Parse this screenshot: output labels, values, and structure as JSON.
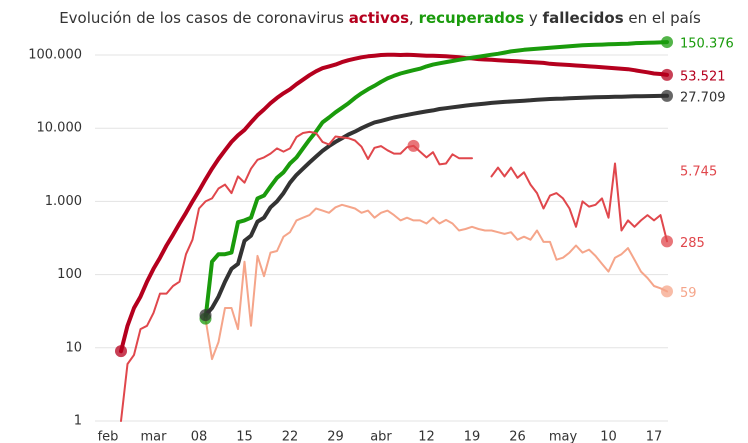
{
  "chart_data": {
    "type": "line",
    "title_parts": [
      "Evolución de los casos de coronavirus ",
      "activos",
      ", ",
      "recuperados",
      " y ",
      "fallecidos",
      " en el país"
    ],
    "categories": [
      "feb",
      null,
      null,
      null,
      null,
      null,
      null,
      "mar",
      null,
      null,
      null,
      null,
      null,
      null,
      "08",
      null,
      null,
      null,
      null,
      null,
      null,
      "15",
      null,
      null,
      null,
      null,
      null,
      null,
      "22",
      null,
      null,
      null,
      null,
      null,
      null,
      "29",
      null,
      null,
      null,
      null,
      null,
      null,
      "abr",
      null,
      null,
      null,
      null,
      null,
      null,
      "12",
      null,
      null,
      null,
      null,
      null,
      null,
      "19",
      null,
      null,
      null,
      null,
      null,
      null,
      "26",
      null,
      null,
      null,
      null,
      null,
      null,
      "may",
      null,
      null,
      null,
      null,
      null,
      null,
      "10",
      null,
      null,
      null,
      null,
      null,
      null,
      "17",
      null,
      null
    ],
    "log_scale": true,
    "grid": true,
    "ylim": [
      1,
      200000
    ],
    "yticks": [
      {
        "value": 100000,
        "label": "100.000"
      },
      {
        "value": 10000,
        "label": "10.000"
      },
      {
        "value": 1000,
        "label": "1.000"
      },
      100,
      10,
      1
    ],
    "series": [
      {
        "color": "#b5001e",
        "line_width": 4,
        "values": [
          null,
          null,
          9,
          20,
          35,
          50,
          80,
          120,
          170,
          250,
          350,
          500,
          700,
          1000,
          1400,
          2000,
          2800,
          3800,
          5000,
          6500,
          8000,
          9500,
          12000,
          15000,
          18000,
          22000,
          26000,
          30000,
          34000,
          40000,
          46000,
          53000,
          60000,
          66000,
          70000,
          74000,
          80000,
          85000,
          89000,
          93000,
          96000,
          98000,
          100000,
          101000,
          101000,
          100000,
          101000,
          100000,
          99000,
          98000,
          98000,
          97000,
          96000,
          95000,
          93000,
          91000,
          90000,
          88000,
          87000,
          86000,
          85000,
          84000,
          83000,
          82000,
          81000,
          80000,
          79000,
          78000,
          76000,
          75000,
          74000,
          73000,
          72000,
          71000,
          70000,
          69000,
          68000,
          67000,
          66000,
          65000,
          64000,
          62000,
          60000,
          58000,
          56000,
          55000,
          53521
        ],
        "value_labels": [
          null,
          null,
          null,
          null,
          null,
          null,
          null,
          null,
          null,
          null,
          null,
          null,
          null,
          null,
          null,
          null,
          null,
          null,
          null,
          null,
          null,
          null,
          null,
          null,
          null,
          null,
          null,
          null,
          null,
          null,
          null,
          null,
          null,
          null,
          null,
          null,
          null,
          null,
          null,
          null,
          null,
          null,
          null,
          null,
          null,
          null,
          null,
          null,
          null,
          null,
          null,
          null,
          null,
          null,
          null,
          null,
          null,
          null,
          null,
          null,
          null,
          null,
          null,
          null,
          null,
          null,
          null,
          null,
          null,
          null,
          null,
          null,
          null,
          null,
          null,
          null,
          null,
          null,
          null,
          null,
          null,
          null,
          null,
          null,
          null,
          null,
          "53.521"
        ]
      },
      {
        "color": "#1a9b0c",
        "line_width": 4,
        "values": [
          null,
          null,
          null,
          null,
          null,
          null,
          null,
          null,
          null,
          null,
          null,
          null,
          null,
          null,
          null,
          25,
          150,
          190,
          190,
          200,
          520,
          550,
          600,
          1100,
          1200,
          1600,
          2100,
          2500,
          3300,
          4000,
          5300,
          7000,
          9000,
          12000,
          14000,
          16500,
          19000,
          22000,
          26000,
          30000,
          34000,
          38000,
          43000,
          48000,
          52000,
          56000,
          59000,
          62000,
          65000,
          70000,
          74000,
          77000,
          80000,
          83000,
          86000,
          89000,
          92000,
          95000,
          98000,
          101000,
          104000,
          108000,
          112000,
          115000,
          118000,
          120000,
          122000,
          124000,
          126000,
          128000,
          130000,
          132000,
          134000,
          136000,
          137000,
          138000,
          139000,
          140000,
          141000,
          142000,
          143000,
          145000,
          146000,
          147000,
          148000,
          149000,
          150376
        ],
        "value_labels": [
          null,
          null,
          null,
          null,
          null,
          null,
          null,
          null,
          null,
          null,
          null,
          null,
          null,
          null,
          null,
          null,
          null,
          null,
          null,
          null,
          null,
          null,
          null,
          null,
          null,
          null,
          null,
          null,
          null,
          null,
          null,
          null,
          null,
          null,
          null,
          null,
          null,
          null,
          null,
          null,
          null,
          null,
          null,
          null,
          null,
          null,
          null,
          null,
          null,
          null,
          null,
          null,
          null,
          null,
          null,
          null,
          null,
          null,
          null,
          null,
          null,
          null,
          null,
          null,
          null,
          null,
          null,
          null,
          null,
          null,
          null,
          null,
          null,
          null,
          null,
          null,
          null,
          null,
          null,
          null,
          null,
          null,
          null,
          null,
          null,
          null,
          "150.376"
        ]
      },
      {
        "color": "#333333",
        "line_width": 4,
        "values": [
          null,
          null,
          null,
          null,
          null,
          null,
          null,
          null,
          null,
          null,
          null,
          null,
          null,
          null,
          null,
          28,
          35,
          50,
          80,
          120,
          140,
          290,
          340,
          530,
          600,
          830,
          1000,
          1300,
          1800,
          2300,
          2800,
          3400,
          4100,
          4900,
          5700,
          6500,
          7300,
          8200,
          9000,
          10000,
          11000,
          12000,
          12600,
          13300,
          14000,
          14600,
          15200,
          15800,
          16400,
          17000,
          17500,
          18300,
          18800,
          19300,
          19800,
          20400,
          20800,
          21300,
          21700,
          22200,
          22500,
          22900,
          23200,
          23500,
          23800,
          24100,
          24500,
          24800,
          25100,
          25300,
          25400,
          25600,
          25900,
          26100,
          26300,
          26500,
          26600,
          26700,
          26900,
          27000,
          27100,
          27300,
          27400,
          27500,
          27600,
          27650,
          27709
        ],
        "value_labels": [
          null,
          null,
          null,
          null,
          null,
          null,
          null,
          null,
          null,
          null,
          null,
          null,
          null,
          null,
          null,
          null,
          null,
          null,
          null,
          null,
          null,
          null,
          null,
          null,
          null,
          null,
          null,
          null,
          null,
          null,
          null,
          null,
          null,
          null,
          null,
          null,
          null,
          null,
          null,
          null,
          null,
          null,
          null,
          null,
          null,
          null,
          null,
          null,
          null,
          null,
          null,
          null,
          null,
          null,
          null,
          null,
          null,
          null,
          null,
          null,
          null,
          null,
          null,
          null,
          null,
          null,
          null,
          null,
          null,
          null,
          null,
          null,
          null,
          null,
          null,
          null,
          null,
          null,
          null,
          null,
          null,
          null,
          null,
          null,
          null,
          null,
          "27.709"
        ]
      },
      {
        "color": "#e0474c",
        "line_width": 2,
        "values": [
          null,
          null,
          1,
          6,
          8,
          18,
          20,
          30,
          55,
          55,
          70,
          80,
          190,
          300,
          800,
          1000,
          1100,
          1500,
          1700,
          1300,
          2200,
          1800,
          2800,
          3700,
          4000,
          4500,
          5300,
          4800,
          5300,
          7600,
          8600,
          8900,
          8600,
          6500,
          6000,
          7700,
          7500,
          7300,
          6800,
          5600,
          3800,
          5400,
          5700,
          5000,
          4500,
          4500,
          5500,
          5745,
          4800,
          4000,
          4700,
          3200,
          3300,
          4400,
          3900,
          3900,
          3900,
          null,
          null,
          2200,
          2900,
          2200,
          2900,
          2100,
          2500,
          1700,
          1300,
          800,
          1200,
          1300,
          1100,
          800,
          450,
          1000,
          850,
          900,
          1100,
          600,
          3300,
          400,
          550,
          450,
          550,
          650,
          550,
          650,
          285
        ],
        "value_labels": [
          null,
          null,
          null,
          null,
          null,
          null,
          null,
          null,
          null,
          null,
          null,
          null,
          null,
          null,
          null,
          null,
          null,
          null,
          null,
          null,
          null,
          null,
          null,
          null,
          null,
          null,
          null,
          null,
          null,
          null,
          null,
          null,
          null,
          null,
          null,
          null,
          null,
          null,
          null,
          null,
          null,
          null,
          null,
          null,
          null,
          null,
          null,
          "5.745",
          null,
          null,
          null,
          null,
          null,
          null,
          null,
          null,
          null,
          null,
          null,
          null,
          null,
          null,
          null,
          null,
          null,
          null,
          null,
          null,
          null,
          null,
          null,
          null,
          null,
          null,
          null,
          null,
          null,
          null,
          null,
          null,
          null,
          null,
          null,
          null,
          null,
          null,
          "285"
        ]
      },
      {
        "color": "#f5a58a",
        "line_width": 2,
        "values": [
          null,
          null,
          null,
          null,
          null,
          null,
          null,
          null,
          null,
          null,
          null,
          null,
          null,
          null,
          null,
          25,
          7,
          12,
          35,
          35,
          18,
          150,
          20,
          180,
          95,
          200,
          210,
          330,
          380,
          550,
          600,
          650,
          800,
          750,
          700,
          830,
          900,
          850,
          800,
          700,
          750,
          600,
          700,
          750,
          650,
          550,
          600,
          550,
          550,
          500,
          600,
          500,
          560,
          500,
          400,
          420,
          450,
          420,
          400,
          400,
          380,
          360,
          380,
          300,
          330,
          300,
          400,
          280,
          280,
          160,
          170,
          200,
          250,
          200,
          220,
          180,
          140,
          110,
          170,
          190,
          230,
          160,
          110,
          90,
          70,
          65,
          59
        ],
        "value_labels": [
          null,
          null,
          null,
          null,
          null,
          null,
          null,
          null,
          null,
          null,
          null,
          null,
          null,
          null,
          null,
          null,
          null,
          null,
          null,
          null,
          null,
          null,
          null,
          null,
          null,
          null,
          null,
          null,
          null,
          null,
          null,
          null,
          null,
          null,
          null,
          null,
          null,
          null,
          null,
          null,
          null,
          null,
          null,
          null,
          null,
          null,
          null,
          null,
          null,
          null,
          null,
          null,
          null,
          null,
          null,
          null,
          null,
          null,
          null,
          null,
          null,
          null,
          null,
          null,
          null,
          null,
          null,
          null,
          null,
          null,
          null,
          null,
          null,
          null,
          null,
          null,
          null,
          null,
          null,
          null,
          null,
          null,
          null,
          null,
          null,
          null,
          "59"
        ]
      }
    ]
  }
}
